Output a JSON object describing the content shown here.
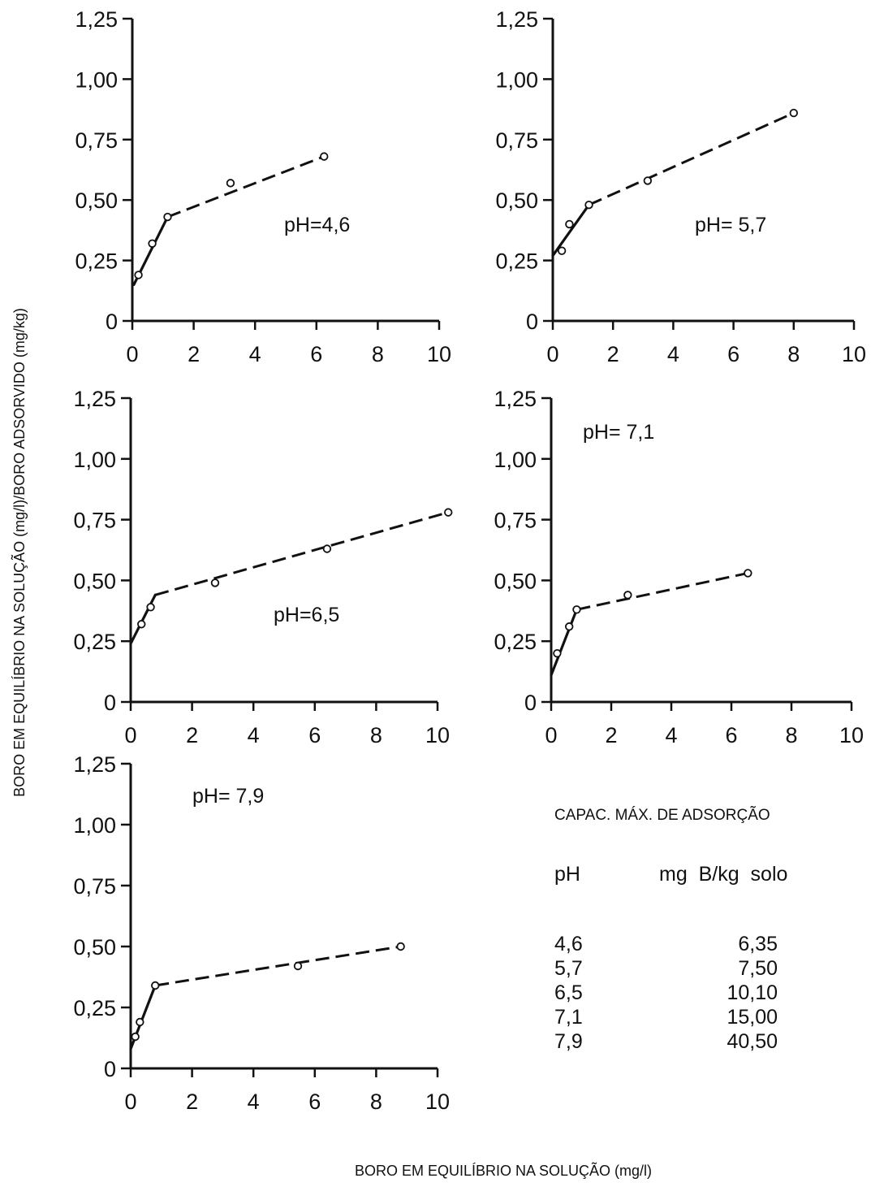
{
  "chart_data": [
    {
      "type": "line",
      "label": "pH=4,6",
      "xlim": [
        0,
        10
      ],
      "ylim": [
        0,
        1.25
      ],
      "x_ticks": [
        "0",
        "2",
        "4",
        "6",
        "8",
        "10"
      ],
      "y_ticks": [
        "0",
        "0,25",
        "0,50",
        "0,75",
        "1,00",
        "1,25"
      ],
      "points": [
        [
          0.2,
          0.19
        ],
        [
          0.65,
          0.32
        ],
        [
          1.15,
          0.43
        ],
        [
          3.2,
          0.57
        ],
        [
          6.25,
          0.68
        ]
      ],
      "solid_fit": [
        [
          0.05,
          0.15
        ],
        [
          1.15,
          0.43
        ]
      ],
      "dashed_fit": [
        [
          1.15,
          0.43
        ],
        [
          6.25,
          0.68
        ]
      ]
    },
    {
      "type": "line",
      "label": "pH= 5,7",
      "xlim": [
        0,
        10
      ],
      "ylim": [
        0,
        1.25
      ],
      "x_ticks": [
        "0",
        "2",
        "4",
        "6",
        "8",
        "10"
      ],
      "y_ticks": [
        "0",
        "0,25",
        "0,50",
        "0,75",
        "1,00",
        "1,25"
      ],
      "points": [
        [
          0.3,
          0.29
        ],
        [
          0.55,
          0.4
        ],
        [
          1.2,
          0.48
        ],
        [
          3.15,
          0.58
        ],
        [
          8.0,
          0.86
        ]
      ],
      "solid_fit": [
        [
          0.0,
          0.27
        ],
        [
          1.2,
          0.48
        ]
      ],
      "dashed_fit": [
        [
          1.2,
          0.48
        ],
        [
          8.0,
          0.86
        ]
      ]
    },
    {
      "type": "line",
      "label": "pH=6,5",
      "xlim": [
        0,
        10
      ],
      "ylim": [
        0,
        1.25
      ],
      "x_ticks": [
        "0",
        "2",
        "4",
        "6",
        "8",
        "10"
      ],
      "y_ticks": [
        "0",
        "0,25",
        "0,50",
        "0,75",
        "1,00",
        "1,25"
      ],
      "points": [
        [
          0.35,
          0.32
        ],
        [
          0.65,
          0.39
        ],
        [
          2.75,
          0.49
        ],
        [
          6.4,
          0.63
        ],
        [
          10.35,
          0.78
        ]
      ],
      "solid_fit": [
        [
          0.0,
          0.24
        ],
        [
          0.8,
          0.44
        ]
      ],
      "dashed_fit": [
        [
          0.8,
          0.44
        ],
        [
          10.35,
          0.78
        ]
      ]
    },
    {
      "type": "line",
      "label": "pH= 7,1",
      "xlim": [
        0,
        10
      ],
      "ylim": [
        0,
        1.25
      ],
      "x_ticks": [
        "0",
        "2",
        "4",
        "6",
        "8",
        "10"
      ],
      "y_ticks": [
        "0",
        "0,25",
        "0,50",
        "0,75",
        "1,00",
        "1,25"
      ],
      "points": [
        [
          0.2,
          0.2
        ],
        [
          0.6,
          0.31
        ],
        [
          0.85,
          0.38
        ],
        [
          2.55,
          0.44
        ],
        [
          6.55,
          0.53
        ]
      ],
      "solid_fit": [
        [
          0.0,
          0.11
        ],
        [
          0.85,
          0.38
        ]
      ],
      "dashed_fit": [
        [
          0.85,
          0.38
        ],
        [
          6.55,
          0.53
        ]
      ]
    },
    {
      "type": "line",
      "label": "pH= 7,9",
      "xlim": [
        0,
        10
      ],
      "ylim": [
        0,
        1.25
      ],
      "x_ticks": [
        "0",
        "2",
        "4",
        "6",
        "8",
        "10"
      ],
      "y_ticks": [
        "0",
        "0,25",
        "0,50",
        "0,75",
        "1,00",
        "1,25"
      ],
      "points": [
        [
          0.15,
          0.13
        ],
        [
          0.3,
          0.19
        ],
        [
          0.8,
          0.34
        ],
        [
          5.45,
          0.42
        ],
        [
          8.8,
          0.5
        ]
      ],
      "solid_fit": [
        [
          0.0,
          0.08
        ],
        [
          0.8,
          0.34
        ]
      ],
      "dashed_fit": [
        [
          0.8,
          0.34
        ],
        [
          8.8,
          0.5
        ]
      ]
    }
  ],
  "axis_titles": {
    "y": "BORO EM EQUILÍBRIO NA SOLUÇÃO (mg/l)/BORO ADSORVIDO (mg/kg)",
    "x": "BORO EM EQUILÍBRIO NA SOLUÇÃO (mg/l)"
  },
  "table": {
    "title": "CAPAC. MÁX. DE ADSORÇÃO",
    "header_ph": "pH",
    "header_value": "mg  B/kg  solo",
    "rows": [
      {
        "ph": "4,6",
        "value": "6,35"
      },
      {
        "ph": "5,7",
        "value": "7,50"
      },
      {
        "ph": "6,5",
        "value": "10,10"
      },
      {
        "ph": "7,1",
        "value": "15,00"
      },
      {
        "ph": "7,9",
        "value": "40,50"
      }
    ]
  },
  "colors": {
    "ink": "#111111",
    "background": "#ffffff"
  }
}
